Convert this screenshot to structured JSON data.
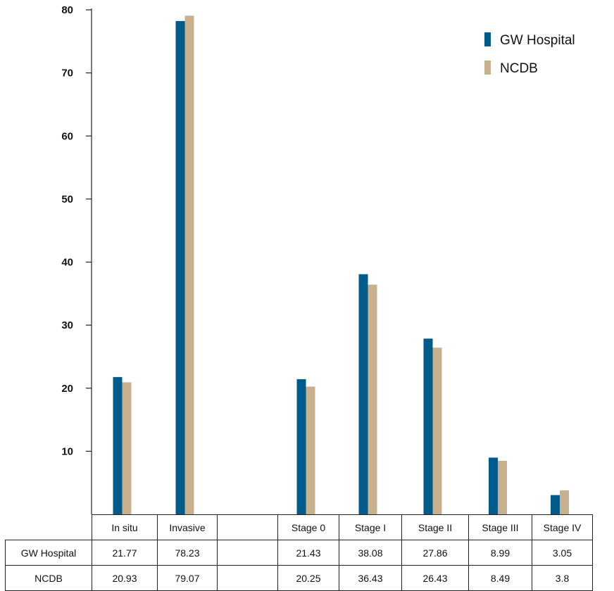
{
  "colors": {
    "gw": "#005a8a",
    "ncdb": "#c8b08e"
  },
  "legend": {
    "placement": "top-right"
  },
  "chart_data": {
    "type": "bar",
    "categories": [
      "In situ",
      "Invasive",
      "",
      "Stage 0",
      "Stage I",
      "Stage II",
      "Stage III",
      "Stage IV"
    ],
    "series": [
      {
        "name": "GW Hospital",
        "values": [
          21.77,
          78.23,
          null,
          21.43,
          38.08,
          27.86,
          8.99,
          3.05
        ]
      },
      {
        "name": "NCDB",
        "values": [
          20.93,
          79.07,
          null,
          20.25,
          36.43,
          26.43,
          8.49,
          3.8
        ]
      }
    ],
    "ylim": [
      0,
      80
    ],
    "yticks": [
      "10",
      "20",
      "30",
      "40",
      "50",
      "60",
      "70",
      "80"
    ],
    "grid": false,
    "title": "",
    "xlabel": "",
    "ylabel": ""
  },
  "table": {
    "rows": [
      {
        "label": "GW Hospital",
        "cells": [
          "21.77",
          "78.23",
          "",
          "21.43",
          "38.08",
          "27.86",
          "8.99",
          "3.05"
        ]
      },
      {
        "label": "NCDB",
        "cells": [
          "20.93",
          "79.07",
          "",
          "20.25",
          "36.43",
          "26.43",
          "8.49",
          "3.8"
        ]
      }
    ]
  }
}
